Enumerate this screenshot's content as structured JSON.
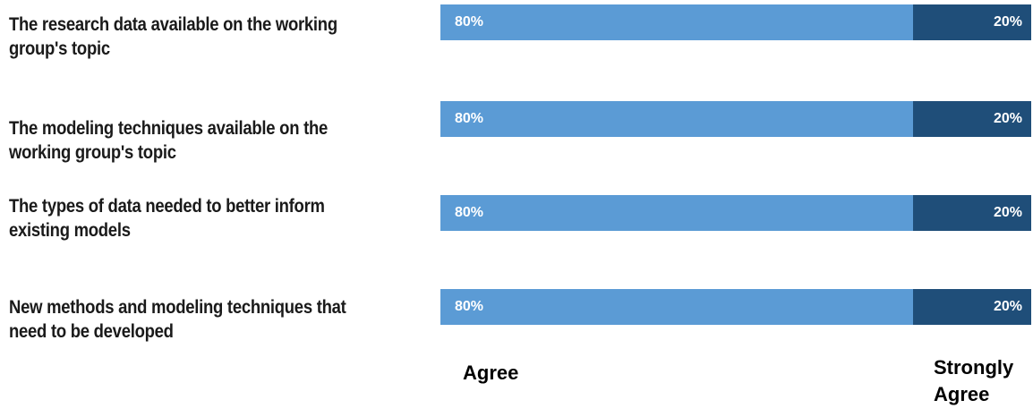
{
  "chart_data": {
    "type": "bar",
    "orientation": "horizontal-stacked-percent",
    "categories": [
      "The research data available on the working group's topic",
      "The modeling techniques available on the working group's topic",
      "The types of data needed to better inform existing models",
      "New methods and modeling techniques that need to be developed"
    ],
    "category_lines": [
      [
        "The research data available on the working",
        "group's topic"
      ],
      [
        "The modeling techniques available on the",
        "working group's topic"
      ],
      [
        "The types of data needed to better inform",
        "existing models"
      ],
      [
        "New methods and modeling techniques that",
        "need to be developed"
      ]
    ],
    "series": [
      {
        "name": "Agree",
        "values": [
          80,
          80,
          80,
          80
        ],
        "labels": [
          "80%",
          "80%",
          "80%",
          "80%"
        ],
        "color": "#5b9bd5"
      },
      {
        "name": "Strongly Agree",
        "values": [
          20,
          20,
          20,
          20
        ],
        "labels": [
          "20%",
          "20%",
          "20%",
          "20%"
        ],
        "color": "#1f4e79"
      }
    ],
    "legend_labels": {
      "agree": "Agree",
      "strongly_agree_line1": "Strongly",
      "strongly_agree_line2": "Agree"
    },
    "legend_placement": "bottom",
    "xlim": [
      0,
      100
    ],
    "grid": false
  }
}
